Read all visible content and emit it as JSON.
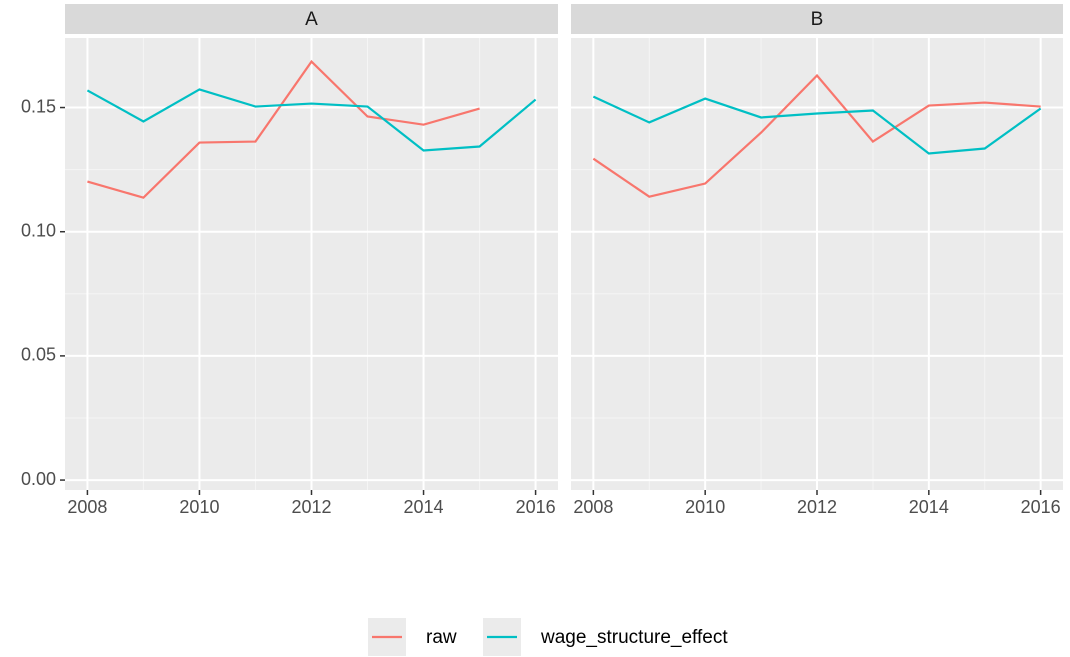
{
  "chart_data": [
    {
      "type": "line",
      "title": "A",
      "x": [
        2008,
        2009,
        2010,
        2011,
        2012,
        2013,
        2014,
        2015,
        2016
      ],
      "series": [
        {
          "name": "raw",
          "color": "#F8766D",
          "values": [
            0.1202,
            0.1137,
            0.1359,
            0.1363,
            0.1685,
            0.1464,
            0.1431,
            0.1496,
            null
          ]
        },
        {
          "name": "wage_structure_effect",
          "color": "#00BFC4",
          "values": [
            0.1569,
            0.1444,
            0.1573,
            0.1504,
            0.1516,
            0.1504,
            0.1327,
            0.1343,
            0.1532
          ]
        }
      ],
      "xlim": [
        2007.6,
        2016.4
      ],
      "ylim": [
        -0.004,
        0.178
      ],
      "xticks": [
        2008,
        2010,
        2012,
        2014,
        2016
      ],
      "yticks": [
        {
          "value": 0,
          "label": "0.00"
        },
        0.05,
        {
          "value": 0.1,
          "label": "0.10"
        },
        0.15
      ],
      "grid": true
    },
    {
      "type": "line",
      "title": "B",
      "x": [
        2008,
        2009,
        2010,
        2011,
        2012,
        2013,
        2014,
        2015,
        2016
      ],
      "series": [
        {
          "name": "raw",
          "color": "#F8766D",
          "values": [
            0.1294,
            0.1141,
            0.1194,
            0.1399,
            0.1629,
            0.1363,
            0.1508,
            0.152,
            0.1504
          ]
        },
        {
          "name": "wage_structure_effect",
          "color": "#00BFC4",
          "values": [
            0.1544,
            0.144,
            0.1536,
            0.146,
            0.1476,
            0.1488,
            0.1315,
            0.1335,
            0.1496
          ]
        }
      ],
      "xlim": [
        2007.6,
        2016.4
      ],
      "ylim": [
        -0.004,
        0.178
      ],
      "xticks": [
        2008,
        2010,
        2012,
        2014,
        2016
      ],
      "yticks": [
        0,
        0.05,
        0.1,
        0.15
      ],
      "grid": true
    }
  ]
}
